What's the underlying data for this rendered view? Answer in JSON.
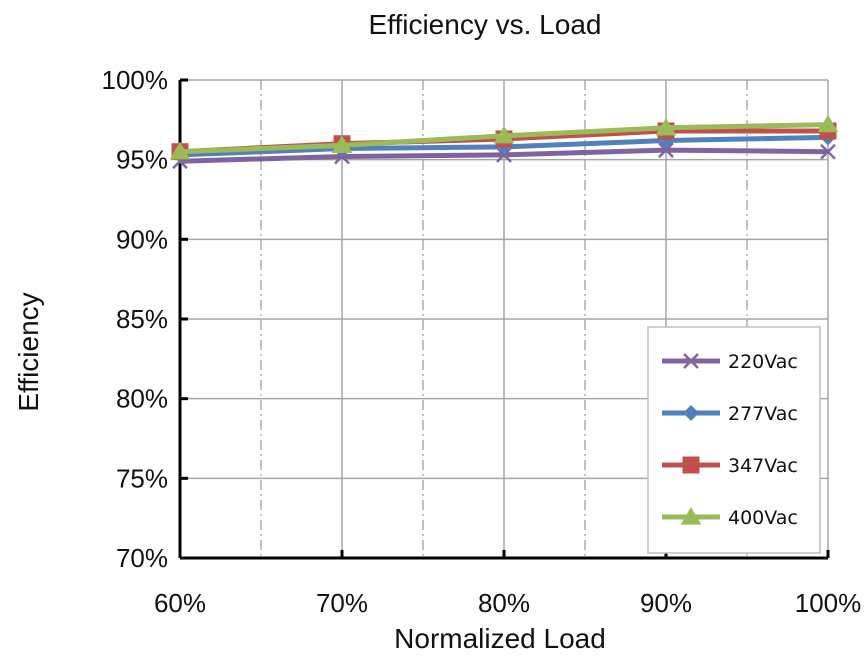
{
  "chart_data": {
    "type": "line",
    "title": "Efficiency vs. Load",
    "xlabel": "Normalized Load",
    "ylabel": "Efficiency",
    "x": [
      60,
      70,
      80,
      90,
      100
    ],
    "x_tick_labels": [
      "60%",
      "70%",
      "80%",
      "90%",
      "100%"
    ],
    "xlim": [
      60,
      100
    ],
    "ylim": [
      70,
      100
    ],
    "y_tick_values": [
      70,
      75,
      80,
      85,
      90,
      95,
      100
    ],
    "y_tick_labels": [
      "70%",
      "75%",
      "80%",
      "85%",
      "90%",
      "95%",
      "100%"
    ],
    "grid": true,
    "legend_position": "bottom-right",
    "series": [
      {
        "name": "220Vac",
        "color": "#8064A2",
        "marker": "x",
        "values": [
          94.9,
          95.2,
          95.3,
          95.6,
          95.5
        ]
      },
      {
        "name": "277Vac",
        "color": "#4F81BD",
        "marker": "diamond",
        "values": [
          95.3,
          95.7,
          95.8,
          96.2,
          96.4
        ]
      },
      {
        "name": "347Vac",
        "color": "#C0504D",
        "marker": "square",
        "values": [
          95.5,
          96.0,
          96.3,
          96.8,
          96.8
        ]
      },
      {
        "name": "400Vac",
        "color": "#9BBB59",
        "marker": "triangle",
        "values": [
          95.5,
          95.9,
          96.5,
          97.0,
          97.2
        ]
      }
    ]
  }
}
